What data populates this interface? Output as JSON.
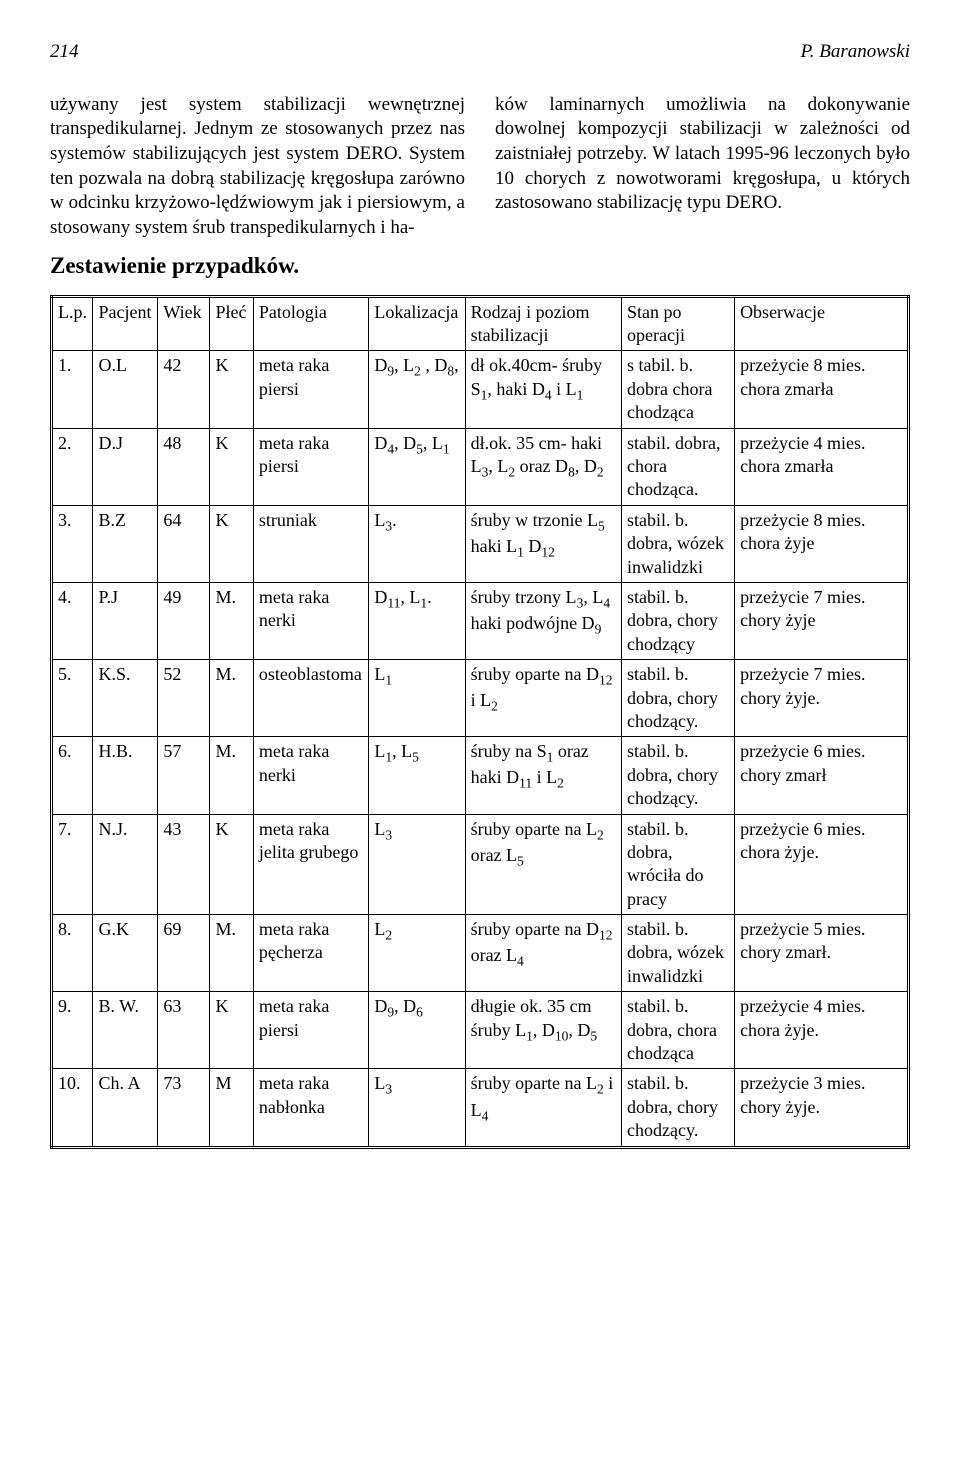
{
  "header": {
    "page_number": "214",
    "author": "P. Baranowski"
  },
  "paragraphs": {
    "left": "używany jest system stabilizacji wewnętrznej transpedikularnej. Jednym ze stosowanych przez nas systemów stabilizujących jest system DERO. System ten pozwala na dobrą stabilizację kręgosłupa zarówno w odcinku krzyżowo-lędźwiowym jak i piersiowym, a stosowany system śrub transpedikularnych i ha-",
    "right": "ków laminarnych umożliwia na dokonywanie dowolnej kompozycji stabilizacji w zależności od zaistniałej potrzeby. W latach 1995-96 leczonych było 10 chorych z nowotworami kręgosłupa, u których zastosowano stabilizację typu DERO."
  },
  "subheading": "Zestawienie przypadków.",
  "table": {
    "headers": {
      "lp": "L.p.",
      "pac": "Pacjent",
      "wiek": "Wiek",
      "plec": "Płeć",
      "pat": "Patologia",
      "lok": "Lokalizacja",
      "rod": "Rodzaj i poziom stabilizacji",
      "stan": "Stan po operacji",
      "obs": "Obserwacje"
    },
    "rows": [
      {
        "lp": "1.",
        "pac": "O.L",
        "wiek": "42",
        "plec": "K",
        "pat": "meta raka piersi",
        "lok": "D<sub>9</sub>, L<sub>2</sub> , D<sub>8</sub>,",
        "rod": "dł ok.40cm- śruby S<sub>1</sub>, haki D<sub>4</sub> i L<sub>1</sub>",
        "stan": "s tabil. b. dobra chora chodząca",
        "obs": "przeżycie 8 mies. chora zmarła"
      },
      {
        "lp": "2.",
        "pac": "D.J",
        "wiek": "48",
        "plec": "K",
        "pat": "meta raka piersi",
        "lok": "D<sub>4</sub>, D<sub>5</sub>, L<sub>1</sub>",
        "rod": "dł.ok. 35 cm- haki L<sub>3</sub>, L<sub>2</sub> oraz D<sub>8</sub>, D<sub>2</sub>",
        "stan": "stabil. dobra, chora chodząca.",
        "obs": "przeżycie 4 mies. chora zmarła"
      },
      {
        "lp": "3.",
        "pac": "B.Z",
        "wiek": "64",
        "plec": "K",
        "pat": "struniak",
        "lok": "L<sub>3</sub>.",
        "rod": "śruby w trzonie L<sub>5</sub> haki L<sub>1</sub> D<sub>12</sub>",
        "stan": "stabil. b. dobra, wózek inwalidzki",
        "obs": "przeżycie 8 mies. chora żyje"
      },
      {
        "lp": "4.",
        "pac": "P.J",
        "wiek": "49",
        "plec": "M.",
        "pat": "meta raka nerki",
        "lok": "D<sub>11</sub>, L<sub>1</sub>.",
        "rod": "śruby trzony L<sub>3</sub>, L<sub>4</sub> haki podwójne D<sub>9</sub>",
        "stan": "stabil. b. dobra, chory chodzący",
        "obs": "przeżycie 7 mies. chory żyje"
      },
      {
        "lp": "5.",
        "pac": "K.S.",
        "wiek": "52",
        "plec": "M.",
        "pat": "osteoblastoma",
        "lok": "L<sub>1</sub>",
        "rod": "śruby oparte na D<sub>12</sub> i L<sub>2</sub>",
        "stan": "stabil. b. dobra, chory chodzący.",
        "obs": "przeżycie 7 mies. chory żyje."
      },
      {
        "lp": "6.",
        "pac": "H.B.",
        "wiek": "57",
        "plec": "M.",
        "pat": "meta raka nerki",
        "lok": "L<sub>1</sub>, L<sub>5</sub>",
        "rod": "śruby na S<sub>1</sub> oraz haki D<sub>11</sub> i L<sub>2</sub>",
        "stan": "stabil. b. dobra, chory chodzący.",
        "obs": "przeżycie 6 mies. chory zmarł"
      },
      {
        "lp": "7.",
        "pac": "N.J.",
        "wiek": "43",
        "plec": "K",
        "pat": "meta raka jelita grubego",
        "lok": "L<sub>3</sub>",
        "rod": "śruby oparte na L<sub>2</sub> oraz L<sub>5</sub>",
        "stan": "stabil. b. dobra, wróciła do pracy",
        "obs": "przeżycie 6 mies. chora żyje."
      },
      {
        "lp": "8.",
        "pac": "G.K",
        "wiek": "69",
        "plec": "M.",
        "pat": "meta raka pęcherza",
        "lok": "L<sub>2</sub>",
        "rod": "śruby oparte na D<sub>12</sub> oraz L<sub>4</sub>",
        "stan": "stabil. b. dobra, wózek inwalidzki",
        "obs": "przeżycie 5 mies. chory zmarł."
      },
      {
        "lp": "9.",
        "pac": "B. W.",
        "wiek": "63",
        "plec": "K",
        "pat": "meta raka piersi",
        "lok": "D<sub>9</sub>, D<sub>6</sub>",
        "rod": "długie ok. 35 cm śruby L<sub>1</sub>, D<sub>10</sub>, D<sub>5</sub>",
        "stan": "stabil. b. dobra, chora chodząca",
        "obs": "przeżycie 4 mies. chora żyje."
      },
      {
        "lp": "10.",
        "pac": "Ch. A",
        "wiek": "73",
        "plec": "M",
        "pat": "meta raka nabłonka",
        "lok": "L<sub>3</sub>",
        "rod": "śruby oparte na L<sub>2</sub> i L<sub>4</sub>",
        "stan": "stabil. b. dobra, chory chodzący.",
        "obs": "przeżycie 3 mies. chory żyje."
      }
    ]
  }
}
